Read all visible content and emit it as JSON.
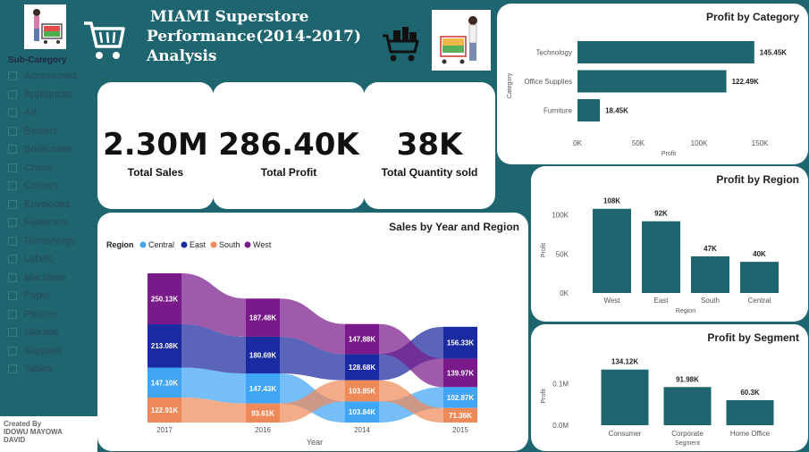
{
  "header": {
    "title_lines": [
      "MIAMI Superstore",
      "Performance(2014-2017)",
      "Analysis"
    ]
  },
  "icons": {
    "logo_left": "shopper-with-cart-photo",
    "cart": "shopping-cart-icon",
    "basket": "grocery-cart-icon",
    "logo_right": "shopper-with-cart-photo"
  },
  "slicer": {
    "title": "Sub-Category",
    "items": [
      "Accessories",
      "Appliances",
      "Art",
      "Binders",
      "Bookcases",
      "Chairs",
      "Copiers",
      "Envelopes",
      "Fasteners",
      "Furnishings",
      "Labels",
      "Machines",
      "Paper",
      "Phones",
      "Storage",
      "Supplies",
      "Tables"
    ]
  },
  "credit": {
    "line1": "Created By",
    "line2": "IDOWU MAYOWA",
    "line3": "DAVID"
  },
  "kpis": [
    {
      "value": "2.30M",
      "label": "Total Sales"
    },
    {
      "value": "286.40K",
      "label": "Total Profit"
    },
    {
      "value": "38K",
      "label": "Total Quantity sold"
    }
  ],
  "colors": {
    "teal": "#1e6570",
    "bar": "#1e6570",
    "central": "#41a5f5",
    "east": "#1a2aa0",
    "south": "#ee8a5a",
    "west": "#7a1a8a"
  },
  "chart_data": [
    {
      "id": "profit-by-category",
      "type": "bar",
      "orientation": "horizontal",
      "title": "Profit by Category",
      "xlabel": "Profit",
      "ylabel": "Category",
      "categories": [
        "Technology",
        "Office Supplies",
        "Furniture"
      ],
      "values": [
        145450,
        122490,
        18450
      ],
      "data_labels": [
        "145.45K",
        "122.49K",
        "18.45K"
      ],
      "xlim": [
        0,
        150000
      ],
      "xticks": [
        0,
        50000,
        100000,
        150000
      ],
      "xtick_labels": [
        "0K",
        "50K",
        "100K",
        "150K"
      ]
    },
    {
      "id": "profit-by-region",
      "type": "bar",
      "title": "Profit by Region",
      "xlabel": "Region",
      "ylabel": "Profit",
      "categories": [
        "West",
        "East",
        "South",
        "Central"
      ],
      "values": [
        108000,
        92000,
        47000,
        40000
      ],
      "data_labels": [
        "108K",
        "92K",
        "47K",
        "40K"
      ],
      "ylim": [
        0,
        110000
      ],
      "yticks": [
        0,
        50000,
        100000
      ],
      "ytick_labels": [
        "0K",
        "50K",
        "100K"
      ]
    },
    {
      "id": "profit-by-segment",
      "type": "bar",
      "title": "Profit by Segment",
      "xlabel": "Segment",
      "ylabel": "Profit",
      "categories": [
        "Consumer",
        "Corporate",
        "Home Office"
      ],
      "values": [
        134120,
        91980,
        60300
      ],
      "data_labels": [
        "134.12K",
        "91.98K",
        "60.3K"
      ],
      "ylim": [
        0,
        140000
      ],
      "yticks": [
        0,
        100000
      ],
      "ytick_labels": [
        "0.0M",
        "0.1M"
      ]
    },
    {
      "id": "sales-by-year-region",
      "type": "area",
      "subtype": "ribbon",
      "title": "Sales by Year and Region",
      "xlabel": "Year",
      "legend_title": "Region",
      "legend_position": "top-left",
      "categories": [
        "2017",
        "2016",
        "2014",
        "2015"
      ],
      "series": [
        {
          "name": "Central",
          "values": [
            147100,
            147430,
            103840,
            102870
          ],
          "labels": [
            "147.10K",
            "147.43K",
            "103.84K",
            "102.87K"
          ]
        },
        {
          "name": "East",
          "values": [
            213080,
            180690,
            128680,
            156330
          ],
          "labels": [
            "213.08K",
            "180.69K",
            "128.68K",
            "156.33K"
          ]
        },
        {
          "name": "South",
          "values": [
            122910,
            93610,
            103850,
            71360
          ],
          "labels": [
            "122.91K",
            "93.61K",
            "103.85K",
            "71.36K"
          ]
        },
        {
          "name": "West",
          "values": [
            250130,
            187480,
            147880,
            139970
          ],
          "labels": [
            "250.13K",
            "187.48K",
            "147.88K",
            "139.97K"
          ]
        }
      ]
    }
  ]
}
